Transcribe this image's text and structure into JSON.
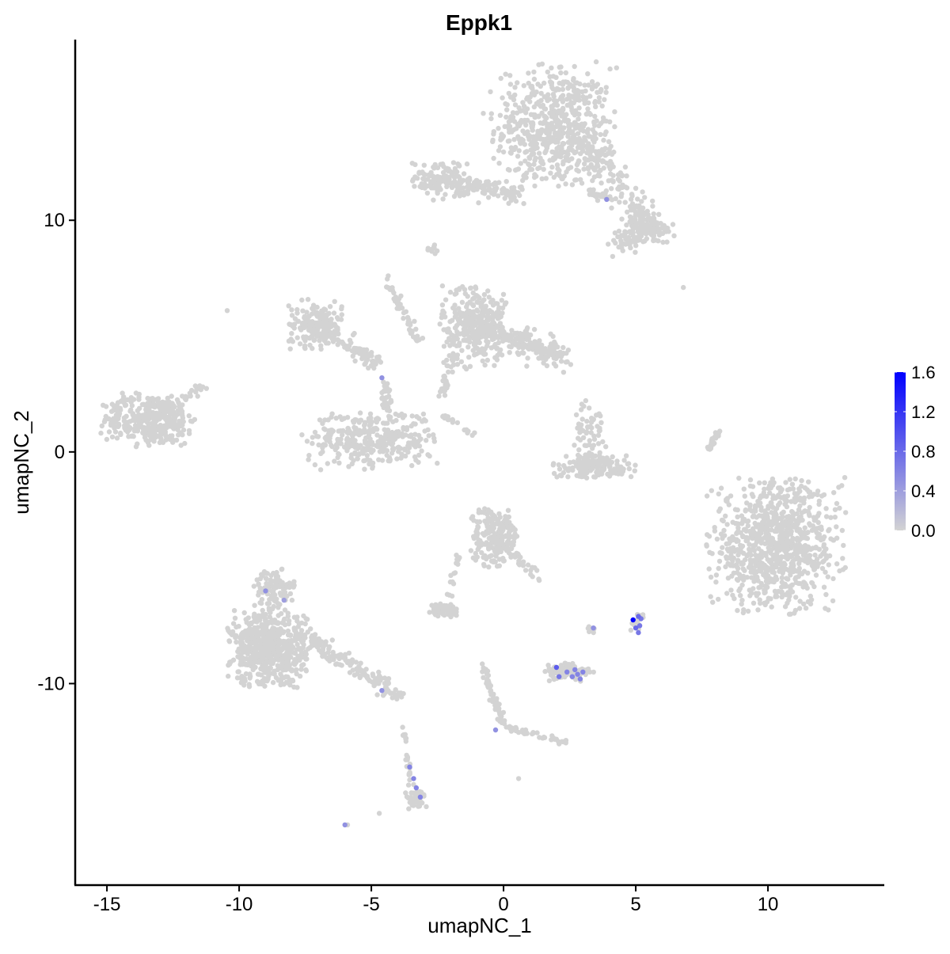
{
  "chart_data": {
    "type": "scatter",
    "title": "Eppk1",
    "xlabel": "umapNC_1",
    "ylabel": "umapNC_2",
    "xlim": [
      -16.2,
      14.4
    ],
    "ylim": [
      -18.7,
      17.8
    ],
    "x_ticks": [
      -15,
      -10,
      -5,
      0,
      5,
      10
    ],
    "x_tick_labels": [
      "-15",
      "-10",
      "-5",
      "0",
      "5",
      "10"
    ],
    "y_ticks": [
      -10,
      0,
      10
    ],
    "y_tick_labels": [
      "-10",
      "0",
      "10"
    ],
    "grid": false,
    "legend": {
      "placement": "right",
      "type": "colorbar",
      "range": [
        0,
        1.6
      ],
      "ticks": [
        "1.6",
        "1.2",
        "0.8",
        "0.4",
        "0.0"
      ],
      "low_color": "#d3d3d3",
      "high_color": "#0000ff"
    },
    "background_clusters": {
      "value": 0,
      "blobs": [
        {
          "x": 1.9,
          "y": 14.0,
          "sx": 1.1,
          "sy": 1.3,
          "n": 600
        },
        {
          "x": -2.4,
          "y": 11.8,
          "sx": 0.5,
          "sy": 0.4,
          "n": 80
        },
        {
          "x": 5.5,
          "y": 9.6,
          "sx": 0.5,
          "sy": 0.3,
          "n": 100
        },
        {
          "x": 4.6,
          "y": 9.1,
          "sx": 0.3,
          "sy": 0.3,
          "n": 40
        },
        {
          "x": -13.35,
          "y": 1.4,
          "sx": 0.9,
          "sy": 0.55,
          "n": 350
        },
        {
          "x": -7.1,
          "y": 5.5,
          "sx": 0.5,
          "sy": 0.5,
          "n": 150
        },
        {
          "x": -5.0,
          "y": 0.55,
          "sx": 1.2,
          "sy": 0.6,
          "n": 350
        },
        {
          "x": -1.1,
          "y": 5.5,
          "sx": 0.6,
          "sy": 0.9,
          "n": 300
        },
        {
          "x": 3.4,
          "y": -0.65,
          "sx": 0.8,
          "sy": 0.25,
          "n": 150
        },
        {
          "x": 3.3,
          "y": 0.9,
          "sx": 0.3,
          "sy": 0.6,
          "n": 60
        },
        {
          "x": 10.3,
          "y": -4.05,
          "sx": 1.2,
          "sy": 1.35,
          "n": 900
        },
        {
          "x": -0.33,
          "y": -3.7,
          "sx": 0.45,
          "sy": 0.6,
          "n": 200
        },
        {
          "x": -2.3,
          "y": -6.8,
          "sx": 0.3,
          "sy": 0.15,
          "n": 60
        },
        {
          "x": -8.9,
          "y": -8.5,
          "sx": 0.7,
          "sy": 0.8,
          "n": 600
        },
        {
          "x": -8.7,
          "y": -5.9,
          "sx": 0.4,
          "sy": 0.4,
          "n": 100
        },
        {
          "x": 2.5,
          "y": -9.5,
          "sx": 0.45,
          "sy": 0.2,
          "n": 100
        },
        {
          "x": 5.05,
          "y": -7.3,
          "sx": 0.15,
          "sy": 0.2,
          "n": 20
        },
        {
          "x": -3.3,
          "y": -15.0,
          "sx": 0.2,
          "sy": 0.2,
          "n": 50
        },
        {
          "x": 3.3,
          "y": -7.65,
          "sx": 0.08,
          "sy": 0.08,
          "n": 10
        },
        {
          "x": -2.7,
          "y": 8.75,
          "sx": 0.1,
          "sy": 0.1,
          "n": 10
        }
      ],
      "streaks": [
        {
          "from": [
            -2.9,
            11.8
          ],
          "to": [
            0.7,
            11.1
          ],
          "w": 0.4,
          "n": 150
        },
        {
          "from": [
            3.1,
            13.4
          ],
          "to": [
            5.5,
            9.8
          ],
          "w": 0.6,
          "n": 150
        },
        {
          "from": [
            3.1,
            11.3
          ],
          "to": [
            4.0,
            11.0
          ],
          "w": 0.2,
          "n": 30
        },
        {
          "from": [
            -13.35,
            1.4
          ],
          "to": [
            -11.3,
            2.8
          ],
          "w": 0.2,
          "n": 40
        },
        {
          "from": [
            -7.1,
            5.5
          ],
          "to": [
            -4.8,
            3.8
          ],
          "w": 0.4,
          "n": 100
        },
        {
          "from": [
            -4.4,
            3.1
          ],
          "to": [
            -4.4,
            1.7
          ],
          "w": 0.2,
          "n": 30
        },
        {
          "from": [
            -4.5,
            7.5
          ],
          "to": [
            -3.2,
            4.8
          ],
          "w": 0.15,
          "n": 50
        },
        {
          "from": [
            -1.1,
            5.5
          ],
          "to": [
            2.2,
            4.1
          ],
          "w": 0.5,
          "n": 250
        },
        {
          "from": [
            -2.0,
            4.1
          ],
          "to": [
            -2.3,
            2.4
          ],
          "w": 0.2,
          "n": 30
        },
        {
          "from": [
            -2.3,
            1.6
          ],
          "to": [
            -1.1,
            0.7
          ],
          "w": 0.1,
          "n": 20
        },
        {
          "from": [
            7.75,
            0.03
          ],
          "to": [
            8.2,
            1.06
          ],
          "w": 0.1,
          "n": 25
        },
        {
          "from": [
            -0.33,
            -3.7
          ],
          "to": [
            1.3,
            -5.4
          ],
          "w": 0.2,
          "n": 40
        },
        {
          "from": [
            -1.7,
            -4.4
          ],
          "to": [
            -2.1,
            -6.5
          ],
          "w": 0.1,
          "n": 15
        },
        {
          "from": [
            -7.7,
            -7.8
          ],
          "to": [
            -3.8,
            -10.6
          ],
          "w": 0.35,
          "n": 150
        },
        {
          "from": [
            -0.8,
            -9.2
          ],
          "to": [
            0.0,
            -11.9
          ],
          "w": 0.15,
          "n": 60
        },
        {
          "from": [
            0.0,
            -11.8
          ],
          "to": [
            2.5,
            -12.6
          ],
          "w": 0.15,
          "n": 40
        },
        {
          "from": [
            -3.8,
            -11.9
          ],
          "to": [
            -3.5,
            -14.3
          ],
          "w": 0.1,
          "n": 25
        }
      ],
      "outliers": [
        [
          -10.45,
          6.1
        ],
        [
          6.8,
          7.1
        ],
        [
          0.57,
          -14.1
        ],
        [
          -4.7,
          -15.6
        ],
        [
          -5.9,
          -16.1
        ]
      ]
    },
    "expressing_cells": [
      {
        "x": -6.0,
        "y": -16.1,
        "value": 0.5
      },
      {
        "x": -4.6,
        "y": 3.2,
        "value": 0.5
      },
      {
        "x": 3.9,
        "y": 10.9,
        "value": 0.5
      },
      {
        "x": -9.0,
        "y": -6.0,
        "value": 0.5
      },
      {
        "x": -8.3,
        "y": -6.4,
        "value": 0.4
      },
      {
        "x": -4.6,
        "y": -10.3,
        "value": 0.5
      },
      {
        "x": -0.3,
        "y": -12.0,
        "value": 0.5
      },
      {
        "x": -3.55,
        "y": -13.6,
        "value": 0.6
      },
      {
        "x": -3.4,
        "y": -14.1,
        "value": 0.6
      },
      {
        "x": -3.3,
        "y": -14.5,
        "value": 0.6
      },
      {
        "x": -3.15,
        "y": -14.9,
        "value": 0.6
      },
      {
        "x": 3.4,
        "y": -7.6,
        "value": 0.5
      },
      {
        "x": 2.0,
        "y": -9.3,
        "value": 0.9
      },
      {
        "x": 2.1,
        "y": -9.7,
        "value": 0.7
      },
      {
        "x": 2.4,
        "y": -9.5,
        "value": 0.6
      },
      {
        "x": 2.6,
        "y": -9.7,
        "value": 0.6
      },
      {
        "x": 2.8,
        "y": -9.6,
        "value": 0.6
      },
      {
        "x": 2.9,
        "y": -9.8,
        "value": 0.6
      },
      {
        "x": 2.7,
        "y": -9.4,
        "value": 0.6
      },
      {
        "x": 3.0,
        "y": -9.5,
        "value": 0.6
      },
      {
        "x": 5.1,
        "y": -7.1,
        "value": 0.8
      },
      {
        "x": 5.2,
        "y": -7.2,
        "value": 0.7
      },
      {
        "x": 5.0,
        "y": -7.6,
        "value": 0.8
      },
      {
        "x": 5.1,
        "y": -7.8,
        "value": 0.7
      },
      {
        "x": 5.15,
        "y": -7.5,
        "value": 0.7
      },
      {
        "x": 4.9,
        "y": -7.25,
        "value": 1.6
      }
    ]
  }
}
